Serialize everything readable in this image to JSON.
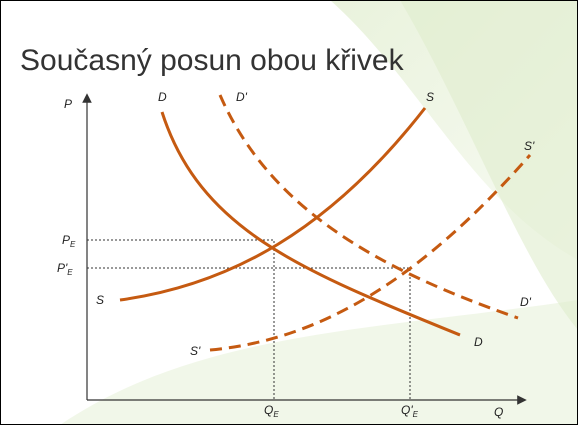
{
  "title": "Současný posun obou křivek",
  "axes": {
    "y": "P",
    "x": "Q"
  },
  "curves": {
    "D": {
      "top": "D",
      "bottom": "D"
    },
    "D_shift": {
      "top": "D'",
      "bottom": "D'"
    },
    "S": {
      "top": "S",
      "bottom": "S"
    },
    "S_shift": {
      "top": "S'",
      "bottom": "S'"
    }
  },
  "equilibrium": {
    "price": {
      "base": "P",
      "sub": "E"
    },
    "price_shift": {
      "base": "P'",
      "sub": "E"
    },
    "quantity": {
      "base": "Q",
      "sub": "E"
    },
    "quantity_shift": {
      "base": "Q'",
      "sub": "E"
    }
  }
}
